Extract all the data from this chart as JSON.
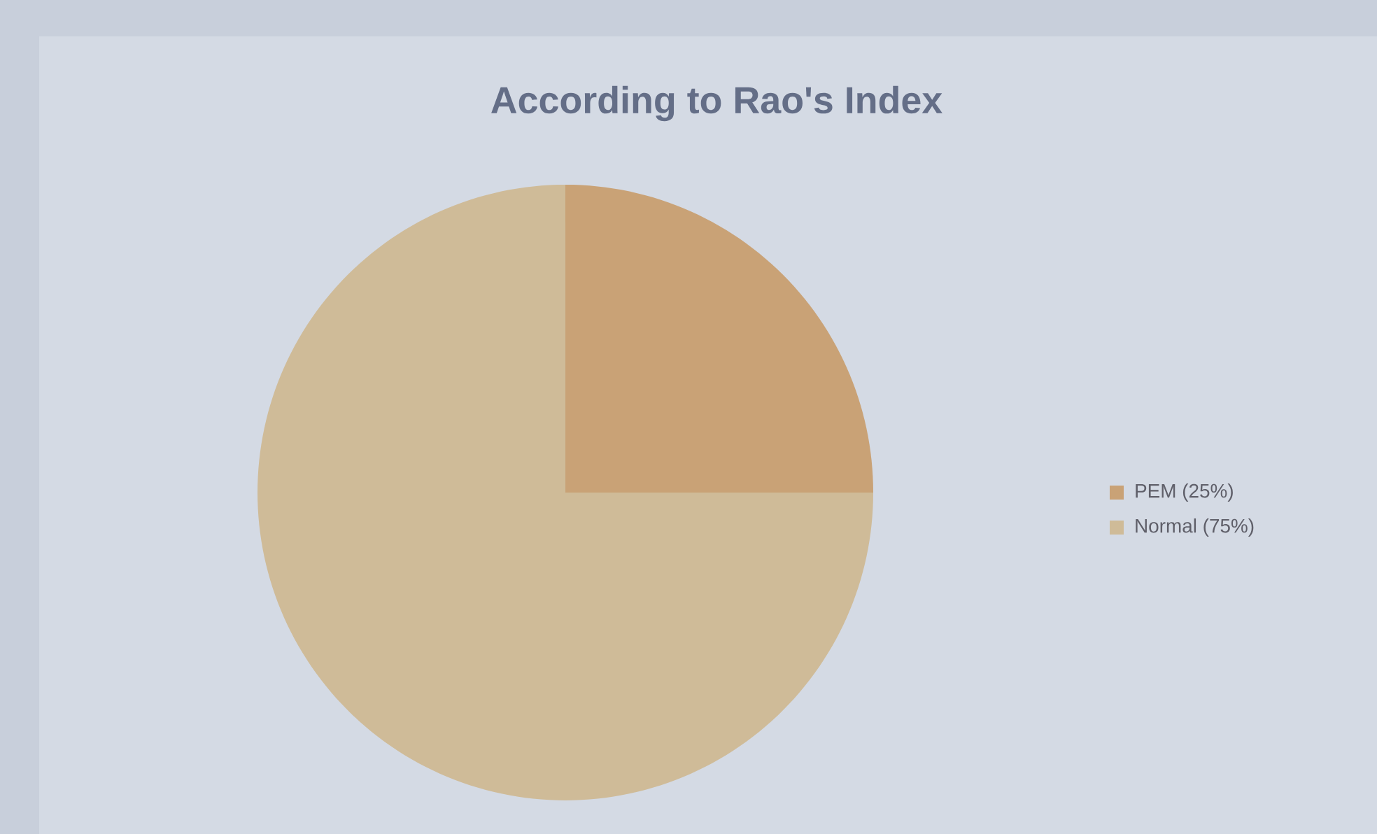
{
  "chart_data": {
    "type": "pie",
    "title": "According to Rao's Index",
    "categories": [
      "PEM (25%)",
      "Normal (75%)"
    ],
    "values": [
      25,
      75
    ],
    "colors": [
      "#c9a276",
      "#cfbb98"
    ],
    "legend": "right"
  }
}
